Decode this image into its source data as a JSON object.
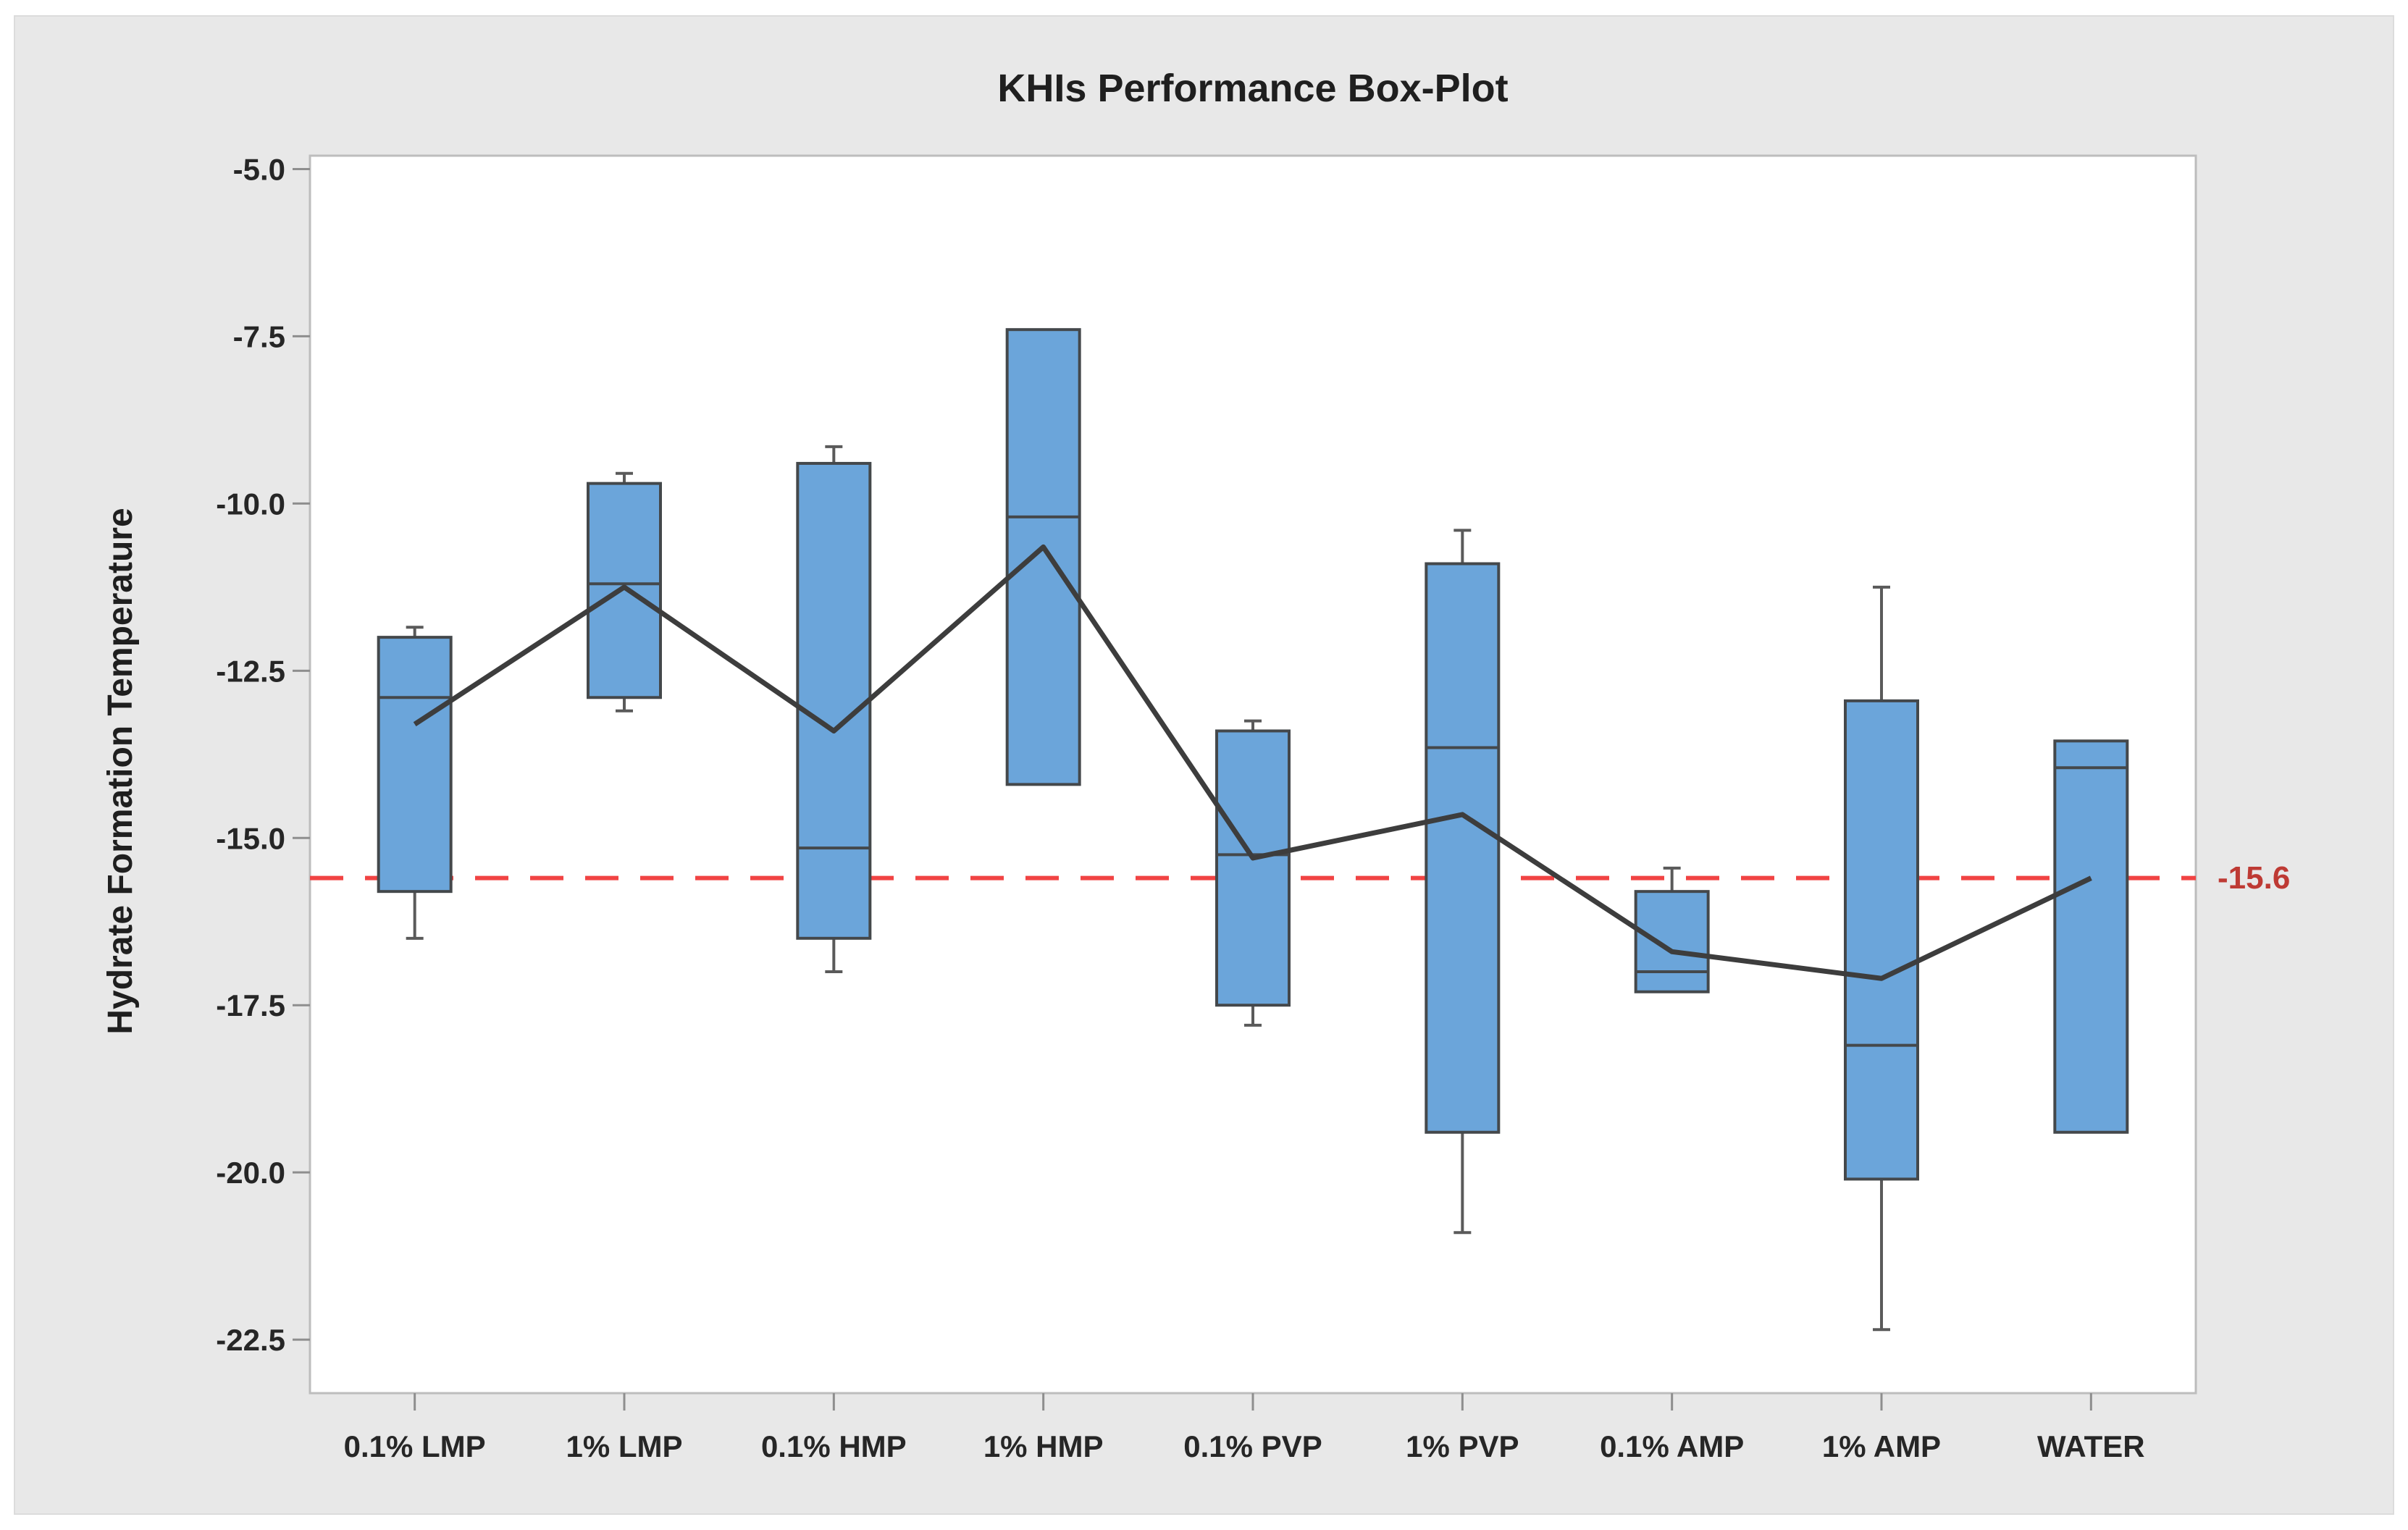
{
  "title": "KHIs Performance Box-Plot",
  "y_axis": {
    "label": "Hydrate Formation Temperature",
    "tick_labels": [
      "-5.0",
      "-7.5",
      "-10.0",
      "-12.5",
      "-15.0",
      "-17.5",
      "-20.0",
      "-22.5"
    ]
  },
  "x_axis": {
    "categories": [
      "0.1% LMP",
      "1% LMP",
      "0.1% HMP",
      "1% HMP",
      "0.1% PVP",
      "1% PVP",
      "0.1% AMP",
      "1% AMP",
      "WATER"
    ]
  },
  "colors": {
    "figure_background": "#E8E8E8",
    "plot_background": "#FFFFFF",
    "plot_border": "#BDBDBD",
    "tick_mark": "#8E8E8E",
    "box_fill": "#6BA5DA",
    "box_border": "#44484B",
    "whisker": "#5A5A5A",
    "mean_line": "#3D3D3D",
    "reference_line": "#F14343",
    "reference_label": "#BE3A34"
  },
  "chart_data": {
    "type": "boxplot",
    "title": "KHIs Performance Box-Plot",
    "xlabel": "",
    "ylabel": "Hydrate Formation Temperature",
    "ylim": [
      -23.3,
      -4.8
    ],
    "y_ticks": [
      -5.0,
      -7.5,
      -10.0,
      -12.5,
      -15.0,
      -17.5,
      -20.0,
      -22.5
    ],
    "grid": false,
    "legend_position": "none",
    "categories": [
      "0.1% LMP",
      "1% LMP",
      "0.1% HMP",
      "1% HMP",
      "0.1% PVP",
      "1% PVP",
      "0.1% AMP",
      "1% AMP",
      "WATER"
    ],
    "boxes": [
      {
        "category": "0.1% LMP",
        "whisker_high": -11.85,
        "q3": -12.0,
        "median": -12.9,
        "q1": -15.8,
        "whisker_low": -16.5,
        "mean": -13.3
      },
      {
        "category": "1% LMP",
        "whisker_high": -9.55,
        "q3": -9.7,
        "median": -11.2,
        "q1": -12.9,
        "whisker_low": -13.1,
        "mean": -11.25
      },
      {
        "category": "0.1% HMP",
        "whisker_high": -9.15,
        "q3": -9.4,
        "median": -15.15,
        "q1": -16.5,
        "whisker_low": -17.0,
        "mean": -13.4
      },
      {
        "category": "1% HMP",
        "whisker_high": null,
        "q3": -7.4,
        "median": -10.2,
        "q1": -14.2,
        "whisker_low": null,
        "mean": -10.65
      },
      {
        "category": "0.1% PVP",
        "whisker_high": -13.25,
        "q3": -13.4,
        "median": -15.25,
        "q1": -17.5,
        "whisker_low": -17.8,
        "mean": -15.3
      },
      {
        "category": "1% PVP",
        "whisker_high": -10.4,
        "q3": -10.9,
        "median": -13.65,
        "q1": -19.4,
        "whisker_low": -20.9,
        "mean": -14.65
      },
      {
        "category": "0.1% AMP",
        "whisker_high": -15.45,
        "q3": -15.8,
        "median": -17.0,
        "q1": -17.3,
        "whisker_low": null,
        "mean": -16.7
      },
      {
        "category": "1% AMP",
        "whisker_high": -11.25,
        "q3": -12.95,
        "median": -18.1,
        "q1": -20.1,
        "whisker_low": -22.35,
        "mean": -17.1
      },
      {
        "category": "WATER",
        "whisker_high": null,
        "q3": -13.55,
        "median": -13.95,
        "q1": -19.4,
        "whisker_low": null,
        "mean": -15.6
      }
    ],
    "mean_line_series": {
      "name": "mean connecting line",
      "values": [
        -13.3,
        -11.25,
        -13.4,
        -10.65,
        -15.3,
        -14.65,
        -16.7,
        -17.1,
        -15.6
      ]
    },
    "reference_line": {
      "value": -15.6,
      "label": "-15.6"
    }
  }
}
